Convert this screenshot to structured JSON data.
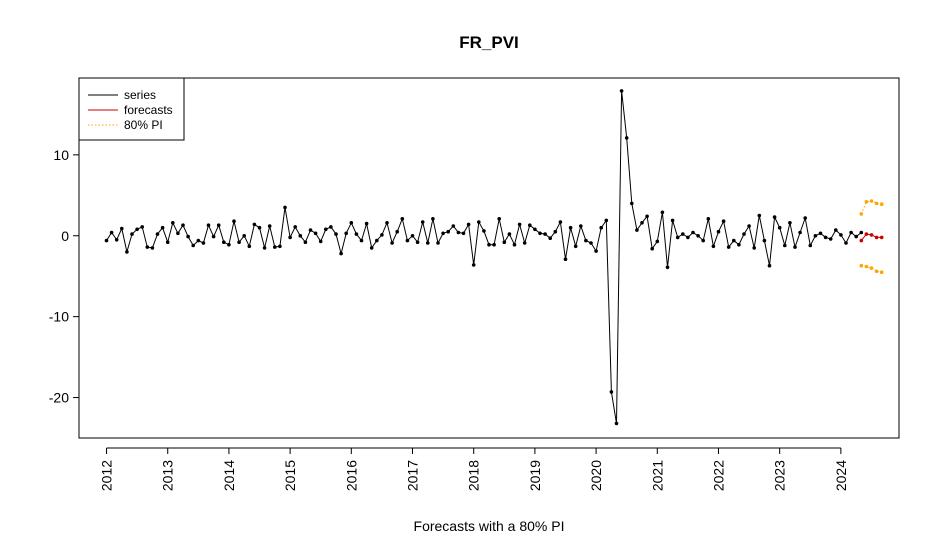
{
  "chart_data": {
    "type": "line",
    "title": "FR_PVI",
    "xlabel": "Forecasts with a 80% PI",
    "ylabel": "",
    "xlim": [
      2011.55,
      2024.95
    ],
    "ylim": [
      -25,
      19.5
    ],
    "x_ticks": [
      2012,
      2013,
      2014,
      2015,
      2016,
      2017,
      2018,
      2019,
      2020,
      2021,
      2022,
      2023,
      2024
    ],
    "x_tick_labels": [
      "2012",
      "2013",
      "2014",
      "2015",
      "2016",
      "2017",
      "2018",
      "2019",
      "2020",
      "2021",
      "2022",
      "2023",
      "2024"
    ],
    "y_ticks": [
      -20,
      -10,
      0,
      10
    ],
    "y_tick_labels": [
      "-20",
      "-10",
      "0",
      "10"
    ],
    "grid": false,
    "legend_position": "top-left",
    "legend": [
      {
        "label": "series",
        "color": "#000000",
        "style": "solid"
      },
      {
        "label": "forecasts",
        "color": "#cc0000",
        "style": "solid"
      },
      {
        "label": "80% PI",
        "color": "#ffa500",
        "style": "dotted"
      }
    ],
    "series": [
      {
        "name": "series",
        "color": "#000000",
        "style": "solid",
        "x_start": 2012.0,
        "x_step": 0.0833333,
        "values": [
          -0.6,
          0.4,
          -0.5,
          0.9,
          -2.0,
          0.2,
          0.8,
          1.1,
          -1.4,
          -1.5,
          0.2,
          1.0,
          -0.8,
          1.6,
          0.3,
          1.3,
          -0.1,
          -1.2,
          -0.6,
          -0.9,
          1.3,
          -0.1,
          1.3,
          -0.8,
          -1.1,
          1.8,
          -0.8,
          0.0,
          -1.3,
          1.4,
          1.0,
          -1.5,
          1.2,
          -1.4,
          -1.3,
          3.5,
          -0.2,
          1.1,
          0.0,
          -0.8,
          0.7,
          0.3,
          -0.7,
          0.8,
          1.1,
          0.2,
          -2.2,
          0.3,
          1.6,
          0.2,
          -0.6,
          1.5,
          -1.5,
          -0.6,
          0.1,
          1.6,
          -0.9,
          0.5,
          2.1,
          -0.6,
          0.0,
          -0.8,
          1.7,
          -0.9,
          2.1,
          -0.9,
          0.3,
          0.5,
          1.2,
          0.4,
          0.3,
          1.4,
          -3.6,
          1.7,
          0.6,
          -1.1,
          -1.1,
          2.1,
          -0.8,
          0.2,
          -1.1,
          1.4,
          -0.9,
          1.3,
          0.8,
          0.3,
          0.2,
          -0.3,
          0.5,
          1.7,
          -2.9,
          1.0,
          -1.3,
          1.2,
          -0.6,
          -0.9,
          -1.9,
          1.0,
          1.9,
          -19.3,
          -23.2,
          17.9,
          12.1,
          4.0,
          0.7,
          1.6,
          2.4,
          -1.6,
          -0.7,
          2.9,
          -3.9,
          1.9,
          -0.2,
          0.2,
          -0.2,
          0.4,
          0.0,
          -0.6,
          2.1,
          -1.3,
          0.5,
          1.8,
          -1.4,
          -0.6,
          -1.1,
          0.2,
          1.2,
          -1.5,
          2.5,
          -0.6,
          -3.7,
          2.3,
          1.0,
          -1.2,
          1.6,
          -1.4,
          0.4,
          2.2,
          -1.2,
          0.0,
          0.3,
          -0.2,
          -0.4,
          0.7,
          0.1,
          -0.9,
          0.4,
          -0.1,
          0.4
        ]
      },
      {
        "name": "forecasts",
        "color": "#cc0000",
        "style": "solid",
        "x_start": 2024.3333,
        "x_step": 0.0833333,
        "values": [
          -0.6,
          0.2,
          0.1,
          -0.2,
          -0.2
        ]
      },
      {
        "name": "80% PI upper",
        "color": "#ffa500",
        "style": "dotted",
        "x_start": 2024.3333,
        "x_step": 0.0833333,
        "values": [
          2.7,
          4.2,
          4.3,
          4.0,
          3.9
        ]
      },
      {
        "name": "80% PI lower",
        "color": "#ffa500",
        "style": "dotted",
        "x_start": 2024.3333,
        "x_step": 0.0833333,
        "values": [
          -3.7,
          -3.8,
          -4.0,
          -4.4,
          -4.5
        ]
      }
    ]
  }
}
